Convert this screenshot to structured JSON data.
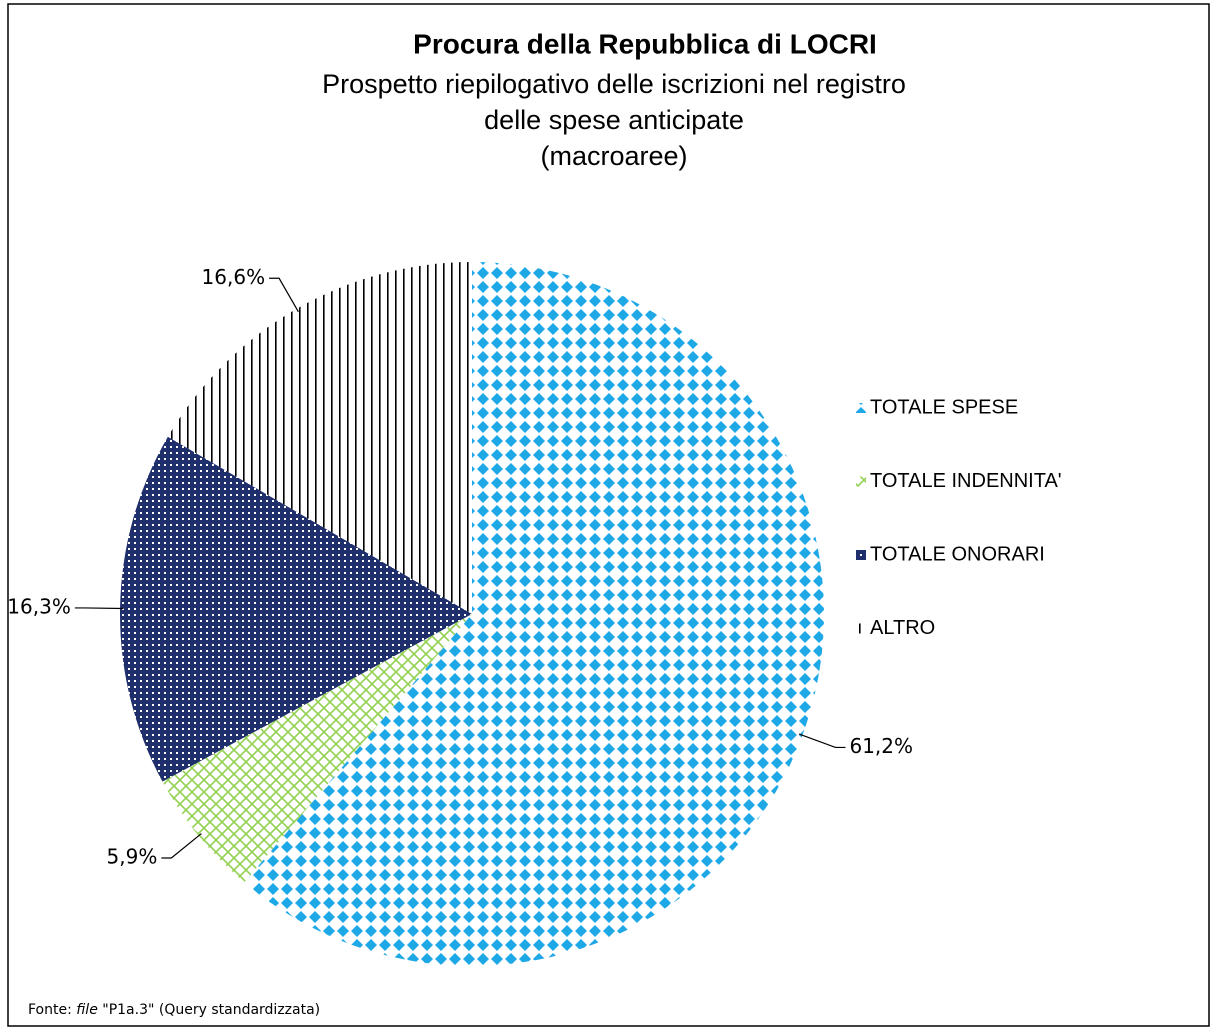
{
  "chart_data": {
    "type": "pie",
    "title": "Procura della Repubblica di LOCRI",
    "subtitle": [
      "Prospetto riepilogativo delle iscrizioni nel registro",
      "delle spese anticipate",
      "(macroaree)"
    ],
    "categories": [
      "TOTALE SPESE",
      "TOTALE INDENNITA'",
      "TOTALE ONORARI",
      "ALTRO"
    ],
    "values": [
      61.2,
      5.9,
      16.3,
      16.6
    ],
    "value_labels": [
      "61,2%",
      "5,9%",
      "16,3%",
      "16,6%"
    ],
    "colors": [
      "#1fa8e6",
      "#92d050",
      "#1f2f6b",
      "#000000"
    ],
    "legend": "right",
    "source": [
      "Fonte: ",
      "file",
      " \"P1a.3\" (Query standardizzata)"
    ]
  }
}
